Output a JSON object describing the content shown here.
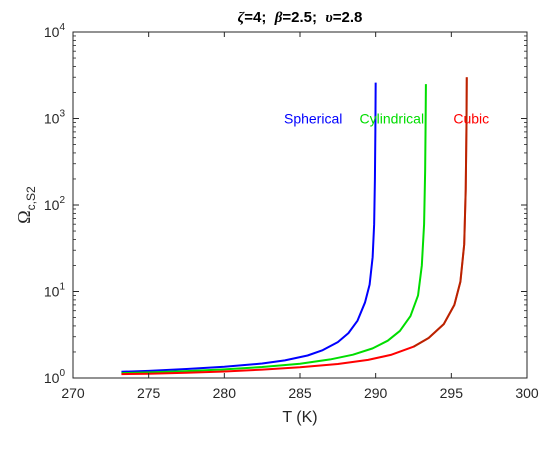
{
  "chart_data": {
    "type": "line",
    "title_parts": [
      {
        "sym": "ζ",
        "rest": "=4; "
      },
      {
        "sym": "β",
        "rest": "=2.5; "
      },
      {
        "sym": "υ",
        "rest": "=2.8"
      }
    ],
    "xlabel": "T (K)",
    "ylabel": {
      "main": "Ω",
      "sub": "c,S2"
    },
    "xlim": [
      270,
      300
    ],
    "ylim": [
      1,
      10000
    ],
    "yscale": "log",
    "grid": false,
    "x_ticks": [
      "270",
      "275",
      "280",
      "285",
      "290",
      "295",
      "300"
    ],
    "y_ticks": [
      {
        "base": "10",
        "exp": "0"
      },
      {
        "base": "10",
        "exp": "1"
      },
      {
        "base": "10",
        "exp": "2"
      },
      {
        "base": "10",
        "exp": "3"
      },
      {
        "base": "10",
        "exp": "4"
      }
    ],
    "series": [
      {
        "name": "Spherical",
        "color": "#0000ff",
        "label_at": [
          287.8,
          1000
        ],
        "points": [
          [
            273.2,
            1.18
          ],
          [
            275,
            1.21
          ],
          [
            277.5,
            1.27
          ],
          [
            280,
            1.35
          ],
          [
            282.5,
            1.47
          ],
          [
            284,
            1.6
          ],
          [
            285.5,
            1.82
          ],
          [
            286.5,
            2.1
          ],
          [
            287.5,
            2.6
          ],
          [
            288.2,
            3.3
          ],
          [
            288.8,
            4.6
          ],
          [
            289.3,
            7.5
          ],
          [
            289.6,
            12
          ],
          [
            289.8,
            25
          ],
          [
            289.9,
            60
          ],
          [
            289.95,
            200
          ],
          [
            289.98,
            700
          ],
          [
            290,
            2600
          ]
        ]
      },
      {
        "name": "Cylindrical",
        "color": "#00dd00",
        "label_at": [
          293.2,
          1000
        ],
        "points": [
          [
            273.2,
            1.14
          ],
          [
            275,
            1.16
          ],
          [
            277.5,
            1.2
          ],
          [
            280,
            1.26
          ],
          [
            282.5,
            1.34
          ],
          [
            285,
            1.46
          ],
          [
            287,
            1.64
          ],
          [
            288.5,
            1.86
          ],
          [
            289.8,
            2.2
          ],
          [
            290.8,
            2.7
          ],
          [
            291.6,
            3.5
          ],
          [
            292.3,
            5.2
          ],
          [
            292.8,
            9
          ],
          [
            293.05,
            20
          ],
          [
            293.2,
            60
          ],
          [
            293.27,
            250
          ],
          [
            293.3,
            900
          ],
          [
            293.32,
            2500
          ]
        ]
      },
      {
        "name": "Cubic",
        "color": "#ff0000",
        "label_at": [
          297.5,
          1000
        ],
        "points": [
          [
            273.2,
            1.11
          ],
          [
            275,
            1.12
          ],
          [
            277.5,
            1.15
          ],
          [
            280,
            1.19
          ],
          [
            282.5,
            1.25
          ],
          [
            285,
            1.33
          ],
          [
            287.5,
            1.45
          ],
          [
            289.5,
            1.62
          ],
          [
            291,
            1.85
          ],
          [
            292.5,
            2.3
          ],
          [
            293.5,
            2.9
          ],
          [
            294.5,
            4.2
          ],
          [
            295.2,
            7
          ],
          [
            295.6,
            13
          ],
          [
            295.85,
            35
          ],
          [
            295.95,
            150
          ],
          [
            296,
            800
          ],
          [
            296.02,
            3000
          ]
        ]
      }
    ],
    "overlap_series_color": "#804000"
  }
}
